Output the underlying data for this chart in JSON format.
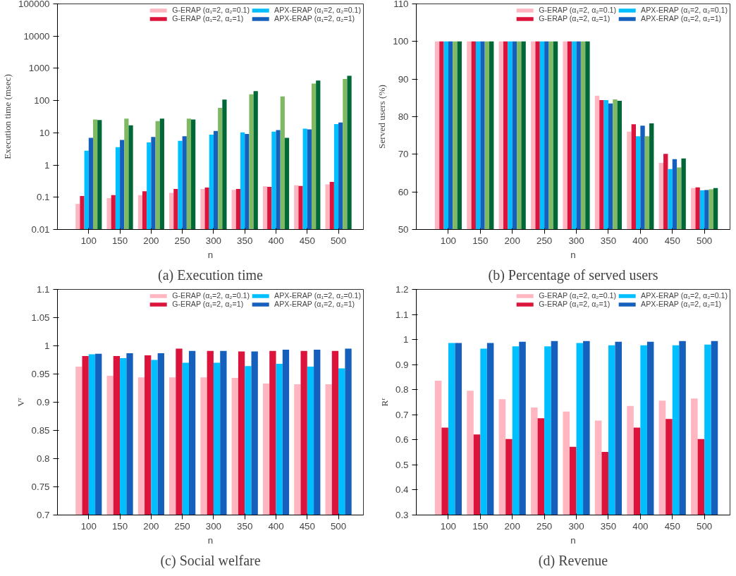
{
  "chart_data": [
    {
      "type": "bar",
      "title": "(a) Execution time",
      "xlabel": "n",
      "ylabel": "Execution time (msec)",
      "log": "y",
      "grid": false,
      "legend": "top right",
      "categories": [
        "100",
        "150",
        "200",
        "250",
        "300",
        "350",
        "400",
        "450",
        "500"
      ],
      "ylim": [
        0.01,
        100000
      ],
      "yticks": [
        0.01,
        0.1,
        1,
        10,
        100,
        1000,
        10000,
        100000
      ],
      "series": [
        {
          "name": "G-ERAP (α₁=2, α₂=0.1)",
          "color": "#ffb6c1",
          "values": [
            0.062,
            0.094,
            0.117,
            0.137,
            0.18,
            0.17,
            0.22,
            0.237,
            0.25
          ]
        },
        {
          "name": "G-ERAP (α₁=2, α₂=1)",
          "color": "#dc143c",
          "values": [
            0.11,
            0.117,
            0.153,
            0.18,
            0.2,
            0.18,
            0.21,
            0.225,
            0.3
          ]
        },
        {
          "name": "APX-ERAP (α₁=2, α₂=0.1)",
          "color": "#00bfff",
          "values": [
            2.8,
            3.6,
            5.0,
            5.6,
            8.7,
            10.3,
            10.9,
            13.5,
            18.7
          ]
        },
        {
          "name": "APX-ERAP (α₁=2, α₂=1)",
          "color": "#1560bd",
          "values": [
            7.0,
            6.0,
            7.4,
            7.8,
            11.4,
            9.2,
            12.1,
            12.8,
            20.9
          ]
        },
        {
          "color": "#80b963",
          "values": [
            26,
            27.5,
            23,
            27.5,
            59,
            157,
            134,
            339,
            470
          ]
        },
        {
          "color": "#006837",
          "values": [
            25,
            17,
            27.5,
            26,
            107,
            196,
            7.0,
            420,
            585
          ]
        }
      ]
    },
    {
      "type": "bar",
      "title": "(b) Percentage of served users",
      "xlabel": "n",
      "ylabel": "Served users (%)",
      "grid": false,
      "legend": "top right",
      "categories": [
        "100",
        "150",
        "200",
        "250",
        "300",
        "350",
        "400",
        "450",
        "500"
      ],
      "ylim": [
        50,
        110
      ],
      "yticks": [
        50,
        60,
        70,
        80,
        90,
        100,
        110
      ],
      "series": [
        {
          "name": "G-ERAP (α₁=2, α₂=0.1)",
          "color": "#ffb6c1",
          "values": [
            100,
            100,
            100,
            100,
            100,
            85.6,
            76.0,
            67.7,
            61.0
          ]
        },
        {
          "name": "G-ERAP (α₁=2, α₂=1)",
          "color": "#dc143c",
          "values": [
            100,
            100,
            100,
            100,
            100,
            84.4,
            78.0,
            70.1,
            61.2
          ]
        },
        {
          "name": "APX-ERAP (α₁=2, α₂=0.1)",
          "color": "#00bfff",
          "values": [
            100,
            100,
            100,
            100,
            100,
            84.4,
            74.8,
            66.1,
            60.4
          ]
        },
        {
          "name": "APX-ERAP (α₁=2, α₂=1)",
          "color": "#1560bd",
          "values": [
            100,
            100,
            100,
            100,
            100,
            83.5,
            77.6,
            68.7,
            60.5
          ]
        },
        {
          "color": "#80b963",
          "values": [
            100,
            100,
            100,
            100,
            100,
            84.6,
            74.8,
            66.5,
            60.7
          ]
        },
        {
          "color": "#006837",
          "values": [
            100,
            100,
            100,
            100,
            100,
            84.2,
            78.2,
            68.9,
            61.0
          ]
        }
      ]
    },
    {
      "type": "bar",
      "title": "(c) Social welfare",
      "xlabel": "n",
      "ylabel": "Vʳ",
      "grid": false,
      "legend": "top right",
      "categories": [
        "100",
        "150",
        "200",
        "250",
        "300",
        "350",
        "400",
        "450",
        "500"
      ],
      "ylim": [
        0.7,
        1.1
      ],
      "yticks": [
        0.7,
        0.75,
        0.8,
        0.85,
        0.9,
        0.95,
        1,
        1.05,
        1.1
      ],
      "series": [
        {
          "name": "G-ERAP (α₁=2, α₂=0.1)",
          "color": "#ffb6c1",
          "values": [
            0.963,
            0.947,
            0.944,
            0.944,
            0.944,
            0.943,
            0.933,
            0.932,
            0.932
          ]
        },
        {
          "name": "G-ERAP (α₁=2, α₂=1)",
          "color": "#dc143c",
          "values": [
            0.982,
            0.982,
            0.983,
            0.995,
            0.991,
            0.99,
            0.991,
            0.991,
            0.991
          ]
        },
        {
          "name": "APX-ERAP (α₁=2, α₂=0.1)",
          "color": "#00bfff",
          "values": [
            0.985,
            0.978,
            0.975,
            0.97,
            0.97,
            0.964,
            0.968,
            0.963,
            0.96
          ]
        },
        {
          "name": "APX-ERAP (α₁=2, α₂=1)",
          "color": "#1560bd",
          "values": [
            0.986,
            0.987,
            0.987,
            0.991,
            0.991,
            0.99,
            0.993,
            0.993,
            0.995
          ]
        }
      ]
    },
    {
      "type": "bar",
      "title": "(d) Revenue",
      "xlabel": "n",
      "ylabel": "Rʳ",
      "grid": false,
      "legend": "top right",
      "categories": [
        "100",
        "150",
        "200",
        "250",
        "300",
        "350",
        "400",
        "450",
        "500"
      ],
      "ylim": [
        0.3,
        1.2
      ],
      "yticks": [
        0.3,
        0.4,
        0.5,
        0.6,
        0.7,
        0.8,
        0.9,
        1,
        1.1,
        1.2
      ],
      "series": [
        {
          "name": "G-ERAP (α₁=2, α₂=0.1)",
          "color": "#ffb6c1",
          "values": [
            0.836,
            0.796,
            0.762,
            0.729,
            0.713,
            0.677,
            0.735,
            0.756,
            0.765
          ]
        },
        {
          "name": "G-ERAP (α₁=2, α₂=1)",
          "color": "#dc143c",
          "values": [
            0.649,
            0.621,
            0.603,
            0.686,
            0.572,
            0.552,
            0.649,
            0.683,
            0.603
          ]
        },
        {
          "name": "APX-ERAP (α₁=2, α₂=0.1)",
          "color": "#00bfff",
          "values": [
            0.986,
            0.964,
            0.973,
            0.973,
            0.986,
            0.977,
            0.977,
            0.977,
            0.98
          ]
        },
        {
          "name": "APX-ERAP (α₁=2, α₂=1)",
          "color": "#1560bd",
          "values": [
            0.986,
            0.986,
            0.991,
            0.994,
            0.994,
            0.991,
            0.991,
            0.994,
            0.994
          ]
        }
      ]
    }
  ]
}
